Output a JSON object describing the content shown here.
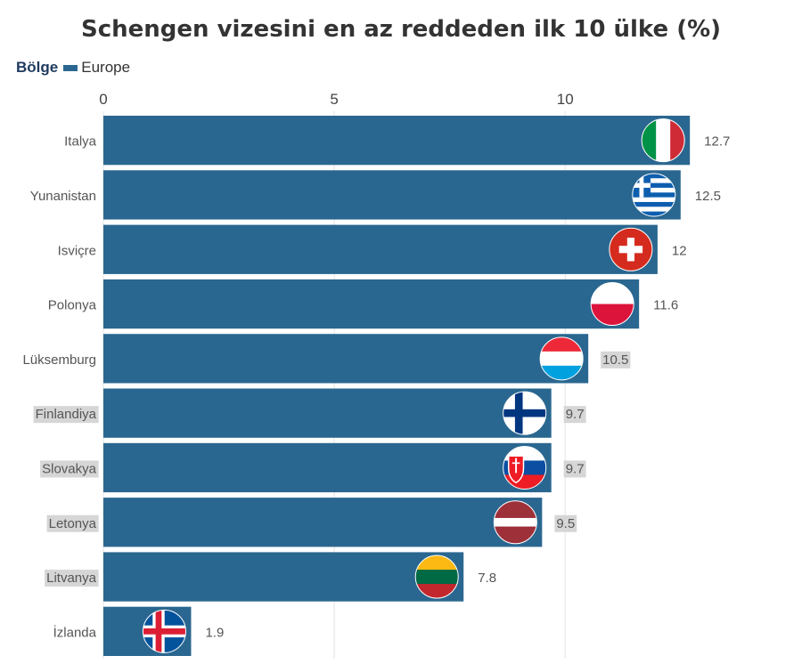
{
  "chart_data": {
    "type": "bar",
    "orientation": "horizontal",
    "title": "Schengen vizesini en az reddeden ilk 10 ülke (%)",
    "legend": {
      "title": "Bölge",
      "entries": [
        "Europe"
      ],
      "placement": "top-left"
    },
    "categories": [
      "Italya",
      "Yunanistan",
      "Isviçre",
      "Polonya",
      "Lüksemburg",
      "Finlandiya",
      "Slovakya",
      "Letonya",
      "Litvanya",
      "İzlanda"
    ],
    "values": [
      12.7,
      12.5,
      12,
      11.6,
      10.5,
      9.7,
      9.7,
      9.5,
      7.8,
      1.9
    ],
    "value_labels": [
      "12.7",
      "12.5",
      "12",
      "11.6",
      "10.5",
      "9.7",
      "9.7",
      "9.5",
      "7.8",
      "1.9"
    ],
    "flags": [
      "italy-flag",
      "greece-flag",
      "switzerland-flag",
      "poland-flag",
      "luxembourg-flag",
      "finland-flag",
      "slovakia-flag",
      "latvia-flag",
      "lithuania-flag",
      "iceland-flag"
    ],
    "x_ticks": [
      0,
      5,
      10
    ],
    "x_tick_labels": [
      "0",
      "5",
      "10"
    ],
    "xlim": [
      0,
      14.8
    ],
    "xlabel": "",
    "ylabel": "",
    "grid": true,
    "colors": {
      "bar": "#2a6790",
      "grid": "#e3e3e3",
      "label_highlight": "#d6d6d6"
    }
  }
}
